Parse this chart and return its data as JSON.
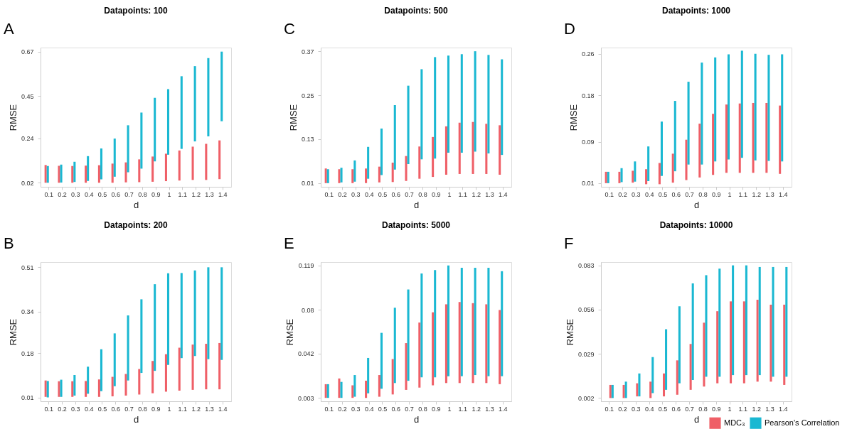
{
  "chart_data": [
    {
      "type": "bar",
      "title": "Datapoints: 100",
      "annotations": [
        "A"
      ],
      "xlabel": "d",
      "ylabel": "RMSE",
      "categories": [
        "0.1",
        "0.2",
        "0.3",
        "0.4",
        "0.5",
        "0.6",
        "0.7",
        "0.8",
        "0.9",
        "1",
        "1.1",
        "1.2",
        "1.3",
        "1.4"
      ],
      "ylim": [
        0.0,
        0.69
      ],
      "yticks": [
        0.02,
        0.24,
        0.45,
        0.67
      ],
      "series": [
        {
          "color": "#ef5f67",
          "base": [
            0.02,
            0.02,
            0.02,
            0.02,
            0.02,
            0.02,
            0.022,
            0.023,
            0.025,
            0.028,
            0.031,
            0.034,
            0.034,
            0.038
          ],
          "values": [
            0.088,
            0.084,
            0.083,
            0.085,
            0.087,
            0.095,
            0.099,
            0.113,
            0.125,
            0.136,
            0.149,
            0.165,
            0.179,
            0.192
          ]
        },
        {
          "color": "#1ab8d2",
          "base": [
            0.02,
            0.021,
            0.024,
            0.029,
            0.037,
            0.05,
            0.072,
            0.09,
            0.126,
            0.159,
            0.188,
            0.225,
            0.25,
            0.325
          ],
          "values": [
            0.083,
            0.089,
            0.1,
            0.123,
            0.153,
            0.189,
            0.233,
            0.278,
            0.315,
            0.325,
            0.36,
            0.373,
            0.388,
            0.345
          ]
        }
      ]
    },
    {
      "type": "bar",
      "title": "Datapoints: 500",
      "annotations": [
        "C"
      ],
      "xlabel": "d",
      "ylabel": "RMSE",
      "categories": [
        "0.1",
        "0.2",
        "0.3",
        "0.4",
        "0.5",
        "0.6",
        "0.7",
        "0.8",
        "0.9",
        "1",
        "1.1",
        "1.2",
        "1.3",
        "1.4"
      ],
      "ylim": [
        0.0,
        0.38
      ],
      "yticks": [
        0.01,
        0.13,
        0.25,
        0.37
      ],
      "series": [
        {
          "color": "#ef5f67",
          "base": [
            0.01,
            0.01,
            0.01,
            0.01,
            0.012,
            0.013,
            0.016,
            0.022,
            0.027,
            0.033,
            0.035,
            0.035,
            0.035,
            0.033
          ],
          "values": [
            0.04,
            0.038,
            0.038,
            0.04,
            0.043,
            0.053,
            0.068,
            0.088,
            0.109,
            0.132,
            0.14,
            0.142,
            0.137,
            0.135
          ]
        },
        {
          "color": "#1ab8d2",
          "base": [
            0.01,
            0.012,
            0.014,
            0.022,
            0.032,
            0.047,
            0.062,
            0.075,
            0.077,
            0.093,
            0.093,
            0.096,
            0.091,
            0.087
          ],
          "values": [
            0.038,
            0.04,
            0.058,
            0.087,
            0.127,
            0.176,
            0.214,
            0.246,
            0.277,
            0.265,
            0.269,
            0.274,
            0.269,
            0.261
          ]
        }
      ]
    },
    {
      "type": "bar",
      "title": "Datapoints: 1000",
      "annotations": [
        "D"
      ],
      "xlabel": "d",
      "ylabel": "RMSE",
      "categories": [
        "0.1",
        "0.2",
        "0.3",
        "0.4",
        "0.5",
        "0.6",
        "0.7",
        "0.8",
        "0.9",
        "1",
        "1.1",
        "1.2",
        "1.3",
        "1.4"
      ],
      "ylim": [
        0.003,
        0.272
      ],
      "yticks": [
        0.01,
        0.09,
        0.18,
        0.26
      ],
      "series": [
        {
          "color": "#ef5f67",
          "base": [
            0.01,
            0.01,
            0.011,
            0.008,
            0.008,
            0.011,
            0.016,
            0.021,
            0.026,
            0.03,
            0.03,
            0.03,
            0.03,
            0.028
          ],
          "values": [
            0.022,
            0.022,
            0.023,
            0.029,
            0.041,
            0.056,
            0.078,
            0.104,
            0.118,
            0.132,
            0.134,
            0.135,
            0.135,
            0.132
          ]
        },
        {
          "color": "#1ab8d2",
          "base": [
            0.01,
            0.012,
            0.013,
            0.014,
            0.024,
            0.033,
            0.046,
            0.046,
            0.052,
            0.056,
            0.059,
            0.054,
            0.053,
            0.052
          ],
          "values": [
            0.022,
            0.027,
            0.039,
            0.067,
            0.105,
            0.136,
            0.16,
            0.197,
            0.201,
            0.203,
            0.207,
            0.206,
            0.205,
            0.207
          ]
        }
      ]
    },
    {
      "type": "bar",
      "title": "Datapoints: 200",
      "annotations": [
        "B"
      ],
      "xlabel": "d",
      "ylabel": "RMSE",
      "categories": [
        "0.1",
        "0.2",
        "0.3",
        "0.4",
        "0.5",
        "0.6",
        "0.7",
        "0.8",
        "0.9",
        "1",
        "1.1",
        "1.2",
        "1.3",
        "1.4"
      ],
      "ylim": [
        -0.005,
        0.53
      ],
      "yticks": [
        0.01,
        0.18,
        0.34,
        0.51
      ],
      "series": [
        {
          "color": "#ef5f67",
          "base": [
            0.012,
            0.012,
            0.012,
            0.012,
            0.012,
            0.014,
            0.017,
            0.021,
            0.026,
            0.032,
            0.036,
            0.039,
            0.041,
            0.041
          ],
          "values": [
            0.063,
            0.06,
            0.06,
            0.061,
            0.067,
            0.075,
            0.083,
            0.098,
            0.124,
            0.144,
            0.165,
            0.174,
            0.175,
            0.178
          ]
        },
        {
          "color": "#1ab8d2",
          "base": [
            0.01,
            0.012,
            0.017,
            0.024,
            0.034,
            0.053,
            0.075,
            0.104,
            0.112,
            0.135,
            0.161,
            0.169,
            0.157,
            0.154
          ],
          "values": [
            0.063,
            0.066,
            0.079,
            0.104,
            0.161,
            0.203,
            0.25,
            0.283,
            0.333,
            0.352,
            0.327,
            0.329,
            0.353,
            0.356
          ]
        }
      ]
    },
    {
      "type": "bar",
      "title": "Datapoints: 5000",
      "annotations": [
        "E"
      ],
      "xlabel": "d",
      "ylabel": "RMSE",
      "categories": [
        "0.1",
        "0.2",
        "0.3",
        "0.4",
        "0.5",
        "0.6",
        "0.7",
        "0.8",
        "0.9",
        "1",
        "1.1",
        "1.2",
        "1.3",
        "1.4"
      ],
      "ylim": [
        0.0,
        0.122
      ],
      "yticks": [
        0.003,
        0.042,
        0.08,
        0.119
      ],
      "series": [
        {
          "color": "#ef5f67",
          "base": [
            0.003,
            0.003,
            0.003,
            0.003,
            0.004,
            0.006,
            0.01,
            0.012,
            0.014,
            0.016,
            0.016,
            0.016,
            0.016,
            0.015
          ],
          "values": [
            0.012,
            0.017,
            0.011,
            0.015,
            0.019,
            0.031,
            0.041,
            0.057,
            0.064,
            0.069,
            0.071,
            0.07,
            0.069,
            0.065
          ]
        },
        {
          "color": "#1ab8d2",
          "base": [
            0.003,
            0.003,
            0.004,
            0.007,
            0.011,
            0.016,
            0.018,
            0.021,
            0.021,
            0.022,
            0.022,
            0.023,
            0.022,
            0.022
          ],
          "values": [
            0.012,
            0.014,
            0.019,
            0.031,
            0.049,
            0.066,
            0.08,
            0.091,
            0.094,
            0.097,
            0.095,
            0.094,
            0.095,
            0.092
          ]
        }
      ]
    },
    {
      "type": "bar",
      "title": "Datapoints: 10000",
      "annotations": [
        "F"
      ],
      "xlabel": "d",
      "ylabel": "RMSE",
      "categories": [
        "0.1",
        "0.2",
        "0.3",
        "0.4",
        "0.5",
        "0.6",
        "0.7",
        "0.8",
        "0.9",
        "1",
        "1.1",
        "1.2",
        "1.3",
        "1.4"
      ],
      "ylim": [
        0.0,
        0.085
      ],
      "yticks": [
        0.002,
        0.029,
        0.056,
        0.083
      ],
      "legend": "bottom right",
      "series": [
        {
          "name": "MDC₃",
          "color": "#ef5f67",
          "base": [
            0.002,
            0.002,
            0.003,
            0.002,
            0.003,
            0.004,
            0.007,
            0.009,
            0.011,
            0.011,
            0.011,
            0.012,
            0.012,
            0.01
          ],
          "values": [
            0.008,
            0.008,
            0.008,
            0.01,
            0.014,
            0.021,
            0.028,
            0.039,
            0.044,
            0.05,
            0.05,
            0.05,
            0.047,
            0.049
          ]
        },
        {
          "name": "Pearson's Correlation",
          "color": "#1ab8d2",
          "base": [
            0.002,
            0.002,
            0.003,
            0.005,
            0.007,
            0.011,
            0.013,
            0.015,
            0.015,
            0.016,
            0.016,
            0.016,
            0.015,
            0.015
          ],
          "values": [
            0.008,
            0.01,
            0.014,
            0.022,
            0.037,
            0.047,
            0.059,
            0.062,
            0.066,
            0.067,
            0.067,
            0.066,
            0.067,
            0.067
          ]
        }
      ]
    }
  ]
}
